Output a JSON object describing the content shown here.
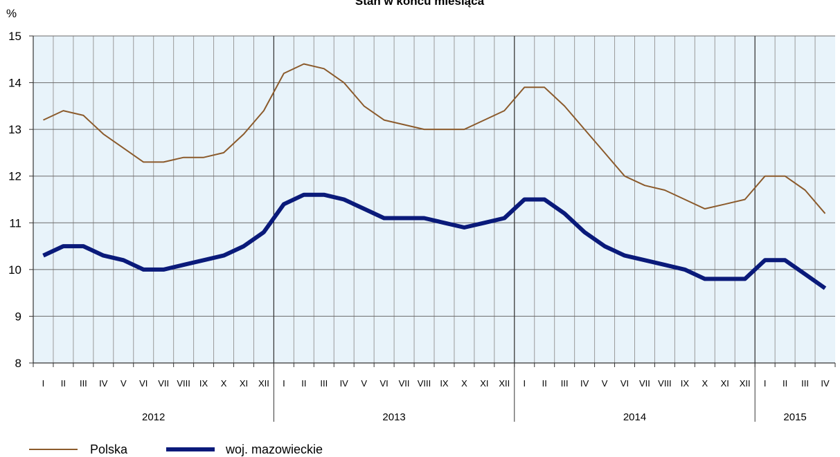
{
  "chart_data": {
    "type": "line",
    "title": "Stan w końcu miesiąca",
    "y_unit_label": "%",
    "ylim": [
      8,
      15
    ],
    "yticks": [
      8,
      9,
      10,
      11,
      12,
      13,
      14,
      15
    ],
    "grid": true,
    "legend_position": "bottom-left",
    "x": [
      "I",
      "II",
      "III",
      "IV",
      "V",
      "VI",
      "VII",
      "VIII",
      "IX",
      "X",
      "XI",
      "XII",
      "I",
      "II",
      "III",
      "IV",
      "V",
      "VI",
      "VII",
      "VIII",
      "IX",
      "X",
      "XI",
      "XII",
      "I",
      "II",
      "III",
      "IV",
      "V",
      "VI",
      "VII",
      "VIII",
      "IX",
      "X",
      "XI",
      "XII",
      "I",
      "II",
      "III",
      "IV"
    ],
    "year_groups": [
      {
        "label": "2012",
        "count": 12
      },
      {
        "label": "2013",
        "count": 12
      },
      {
        "label": "2014",
        "count": 12
      },
      {
        "label": "2015",
        "count": 4
      }
    ],
    "series": [
      {
        "name": "Polska",
        "color": "#8b5a2b",
        "values": [
          13.2,
          13.4,
          13.3,
          12.9,
          12.6,
          12.3,
          12.3,
          12.4,
          12.4,
          12.5,
          12.9,
          13.4,
          14.2,
          14.4,
          14.3,
          14.0,
          13.5,
          13.2,
          13.1,
          13.0,
          13.0,
          13.0,
          13.2,
          13.4,
          13.9,
          13.9,
          13.5,
          13.0,
          12.5,
          12.0,
          11.8,
          11.7,
          11.5,
          11.3,
          11.4,
          11.5,
          12.0,
          12.0,
          11.7,
          11.2
        ]
      },
      {
        "name": "woj. mazowieckie",
        "color": "#0a1a7a",
        "values": [
          10.3,
          10.5,
          10.5,
          10.3,
          10.2,
          10.0,
          10.0,
          10.1,
          10.2,
          10.3,
          10.5,
          10.8,
          11.4,
          11.6,
          11.6,
          11.5,
          11.3,
          11.1,
          11.1,
          11.1,
          11.0,
          10.9,
          11.0,
          11.1,
          11.5,
          11.5,
          11.2,
          10.8,
          10.5,
          10.3,
          10.2,
          10.1,
          10.0,
          9.8,
          9.8,
          9.8,
          10.2,
          10.2,
          9.9,
          9.6
        ]
      }
    ]
  }
}
